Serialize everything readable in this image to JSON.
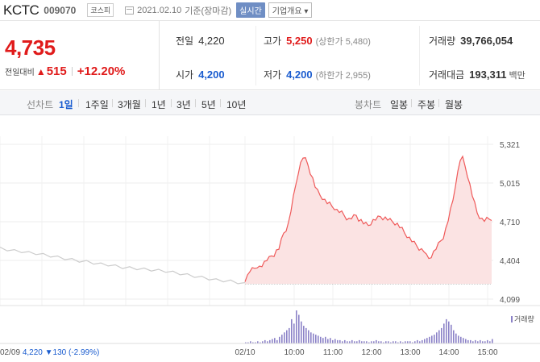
{
  "header": {
    "name": "KCTC",
    "code": "009070",
    "market": "코스피",
    "date": "2021.02.10",
    "basis": "기준(장마감)",
    "realtime": "실시간",
    "company_info": "기업개요 ▾"
  },
  "summary": {
    "price": "4,735",
    "change_label": "전일대비",
    "change_arrow": "▲",
    "change_amount": "515",
    "change_pct": "+12.20%",
    "prev_close_label": "전일",
    "prev_close": "4,220",
    "high_label": "고가",
    "high": "5,250",
    "upper_limit": "(상한가 5,480)",
    "volume_label": "거래량",
    "volume": "39,766,054",
    "open_label": "시가",
    "open": "4,200",
    "low_label": "저가",
    "low": "4,200",
    "lower_limit": "(하한가 2,955)",
    "value_label": "거래대금",
    "value": "193,311",
    "value_unit": "백만"
  },
  "tabs": {
    "line_chart": "선차트",
    "periods": [
      "1일",
      "1주일",
      "3개월",
      "1년",
      "3년",
      "5년",
      "10년"
    ],
    "candle_chart": "봉차트",
    "candles": [
      "일봉",
      "주봉",
      "월봉"
    ]
  },
  "colors": {
    "up": "#e01b1b",
    "down": "#1a5ccf",
    "area_fill": "#fbe3e3",
    "prev_line": "#cccccc",
    "volume_bar": "#8b82c7"
  },
  "chart_data": {
    "type": "area",
    "y_ticks": [
      "5,321",
      "5,015",
      "4,710",
      "4,404",
      "4,099"
    ],
    "ylim": [
      4099,
      5321
    ],
    "x_ticks": [
      "02/10",
      "10:00",
      "11:00",
      "12:00",
      "13:00",
      "14:00",
      "15:00"
    ],
    "prev_day_label": "02/09",
    "prev_day_close": "4,220",
    "prev_day_change_arrow": "▼",
    "prev_day_change": "130",
    "prev_day_pct": "(-2.99%)",
    "volume_legend": "거래량",
    "baseline": 4220,
    "prev_day_series": [
      4500,
      4490,
      4480,
      4475,
      4465,
      4460,
      4450,
      4440,
      4430,
      4420,
      4410,
      4400,
      4395,
      4385,
      4375,
      4370,
      4360,
      4350,
      4345,
      4340,
      4335,
      4330,
      4325,
      4320,
      4310,
      4300,
      4290,
      4280,
      4270,
      4260,
      4250,
      4245,
      4240,
      4230,
      4220
    ],
    "today_series": [
      4220,
      4290,
      4330,
      4340,
      4350,
      4330,
      4360,
      4370,
      4390,
      4410,
      4420,
      4440,
      4450,
      4480,
      4500,
      4560,
      4620,
      4650,
      4700,
      4800,
      4900,
      5000,
      5100,
      5170,
      5220,
      5200,
      5160,
      5100,
      5050,
      4990,
      4950,
      4920,
      4900,
      4880,
      4860,
      4850,
      4830,
      4820,
      4800,
      4790,
      4780,
      4760,
      4740,
      4730,
      4740,
      4750,
      4760,
      4730,
      4720,
      4700,
      4690,
      4680,
      4700,
      4720,
      4730,
      4740,
      4750,
      4740,
      4740,
      4730,
      4720,
      4710,
      4700,
      4690,
      4670,
      4650,
      4620,
      4600,
      4580,
      4560,
      4540,
      4520,
      4500,
      4490,
      4480,
      4440,
      4420,
      4440,
      4470,
      4500,
      4530,
      4560,
      4590,
      4650,
      4720,
      4800,
      4880,
      5000,
      5100,
      5200,
      5210,
      5150,
      5080,
      5000,
      4920,
      4850,
      4780,
      4750,
      4730,
      4720,
      4730,
      4730,
      4735
    ],
    "volume_series": [
      1,
      1,
      2,
      1,
      1,
      2,
      1,
      2,
      3,
      2,
      3,
      4,
      5,
      3,
      6,
      8,
      10,
      12,
      14,
      22,
      18,
      30,
      26,
      20,
      16,
      14,
      12,
      10,
      9,
      8,
      7,
      6,
      5,
      6,
      4,
      5,
      3,
      4,
      3,
      3,
      2,
      3,
      2,
      2,
      3,
      2,
      2,
      3,
      2,
      2,
      2,
      1,
      2,
      2,
      3,
      2,
      2,
      1,
      2,
      2,
      1,
      2,
      2,
      1,
      2,
      1,
      2,
      2,
      2,
      1,
      2,
      3,
      2,
      3,
      4,
      5,
      6,
      7,
      8,
      10,
      12,
      14,
      18,
      22,
      20,
      17,
      12,
      9,
      7,
      6,
      5,
      4,
      3,
      3,
      2,
      3,
      2,
      3,
      2,
      2,
      3,
      2,
      4
    ]
  }
}
